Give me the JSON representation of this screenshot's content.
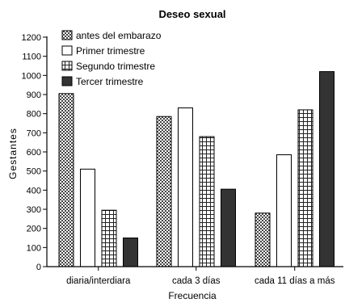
{
  "chart_data": {
    "type": "bar",
    "title": "Deseo sexual",
    "xlabel": "Frecuencia",
    "ylabel": "Gestantes",
    "ylim": [
      0,
      1200
    ],
    "yticks": [
      0,
      100,
      200,
      300,
      400,
      500,
      600,
      700,
      800,
      900,
      1000,
      1100,
      1200
    ],
    "grid": false,
    "legend_position": "top-left",
    "categories": [
      "diaria/interdiara",
      "cada 3 días",
      "cada 11 días a más"
    ],
    "series": [
      {
        "name": "antes del embarazo",
        "pattern": "checker",
        "color": "#555555",
        "values": [
          905,
          785,
          280
        ]
      },
      {
        "name": "Primer trimestre",
        "pattern": "none",
        "color": "#ffffff",
        "values": [
          510,
          830,
          585
        ]
      },
      {
        "name": "Segundo trimestre",
        "pattern": "grid",
        "color": "#ffffff",
        "values": [
          295,
          680,
          820
        ]
      },
      {
        "name": "Tercer trimestre",
        "pattern": "solid",
        "color": "#333333",
        "values": [
          150,
          405,
          1020
        ]
      }
    ]
  }
}
